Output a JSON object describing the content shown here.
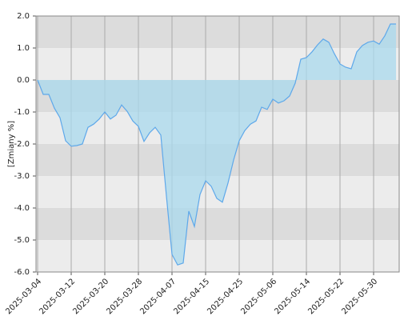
{
  "chart_data": {
    "type": "area",
    "ylabel": "[Zmiany %]",
    "categories": [
      "2025-03-04",
      null,
      null,
      null,
      null,
      null,
      "2025-03-12",
      null,
      null,
      null,
      null,
      null,
      "2025-03-20",
      null,
      null,
      null,
      null,
      null,
      "2025-03-28",
      null,
      null,
      null,
      null,
      null,
      "2025-04-07",
      null,
      null,
      null,
      null,
      null,
      "2025-04-15",
      null,
      null,
      null,
      null,
      null,
      "2025-04-25",
      null,
      null,
      null,
      null,
      null,
      "2025-05-06",
      null,
      null,
      null,
      null,
      null,
      "2025-05-14",
      null,
      null,
      null,
      null,
      null,
      "2025-05-22",
      null,
      null,
      null,
      null,
      null,
      "2025-05-30",
      null,
      null,
      null,
      null
    ],
    "values": [
      0,
      -0.45,
      -0.45,
      -0.88,
      -1.18,
      -1.9,
      -2.07,
      -2.05,
      -2.0,
      -1.48,
      -1.38,
      -1.22,
      -1.0,
      -1.22,
      -1.1,
      -0.78,
      -0.98,
      -1.28,
      -1.45,
      -1.92,
      -1.65,
      -1.48,
      -1.72,
      -3.62,
      -5.45,
      -5.78,
      -5.72,
      -4.1,
      -4.58,
      -3.58,
      -3.15,
      -3.32,
      -3.7,
      -3.82,
      -3.22,
      -2.5,
      -1.9,
      -1.58,
      -1.38,
      -1.28,
      -0.85,
      -0.92,
      -0.6,
      -0.72,
      -0.65,
      -0.5,
      -0.1,
      0.65,
      0.7,
      0.88,
      1.1,
      1.28,
      1.18,
      0.82,
      0.5,
      0.4,
      0.35,
      0.88,
      1.08,
      1.18,
      1.22,
      1.12,
      1.38,
      1.75,
      1.75
    ],
    "color": "#5ea8ea",
    "fill_color": "#a9d9ee",
    "ylim": [
      -6,
      2
    ],
    "yticks": [
      {
        "value": -6,
        "label": "-6.0"
      },
      {
        "value": -5,
        "label": "-5.0"
      },
      {
        "value": -4,
        "label": "-4.0"
      },
      {
        "value": -3,
        "label": "-3.0"
      },
      {
        "value": -2,
        "label": "-2.0"
      },
      {
        "value": -1,
        "label": "-1.0"
      },
      {
        "value": 0,
        "label": "0.0"
      },
      {
        "value": 1,
        "label": "1.0"
      },
      {
        "value": 2,
        "label": "2.0"
      }
    ],
    "grid": true
  }
}
